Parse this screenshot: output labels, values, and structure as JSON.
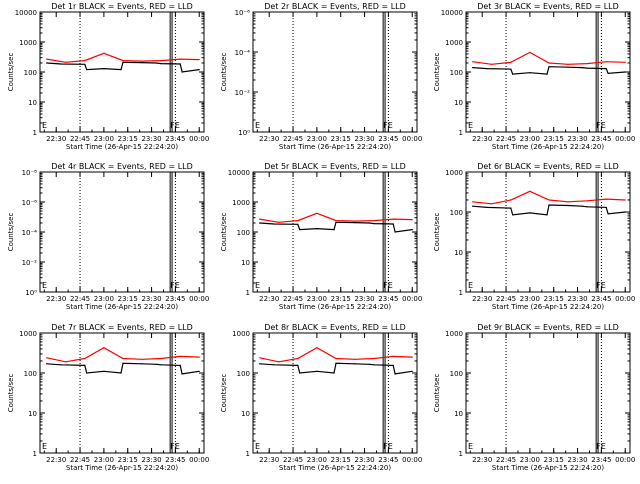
{
  "figure": {
    "background": "#ffffff",
    "events_color": "#000000",
    "lld_color": "#ff0000",
    "x_tick_labels": [
      "22:30",
      "22:45",
      "23:00",
      "23:15",
      "23:30",
      "23:45",
      "00:00"
    ],
    "xlabel": "Start Time (26-Apr-15 22:24:20)",
    "ylabel": "Counts/sec",
    "marker_label_e": "E",
    "marker_label_fe": "FE"
  },
  "chart_data": [
    {
      "type": "line",
      "title": "Det 1r BLACK = Events, RED = LLD",
      "ylog": true,
      "yticks": [
        "1",
        "10",
        "100",
        "1000",
        "10000"
      ],
      "series": [
        {
          "name": "Events",
          "color": "#000000",
          "x": [
            22.4,
            22.55,
            22.8,
            22.82,
            23.0,
            23.18,
            23.2,
            23.4,
            23.55,
            23.6,
            23.8,
            23.82,
            24.0
          ],
          "y": [
            200,
            185,
            180,
            120,
            130,
            120,
            210,
            205,
            200,
            190,
            185,
            100,
            120
          ]
        },
        {
          "name": "LLD",
          "color": "#ff0000",
          "x": [
            22.4,
            22.6,
            22.8,
            23.0,
            23.2,
            23.4,
            23.6,
            23.8,
            24.0
          ],
          "y": [
            270,
            210,
            240,
            420,
            240,
            230,
            240,
            270,
            260
          ]
        }
      ]
    },
    {
      "type": "line",
      "title": "Det 2r BLACK = Events, RED = LLD",
      "ylog": true,
      "yticks": [
        "10⁰",
        "10⁻²",
        "10⁻⁴",
        "10⁻⁶"
      ],
      "series": []
    },
    {
      "type": "line",
      "title": "Det 3r BLACK = Events, RED = LLD",
      "ylog": true,
      "yticks": [
        "1",
        "10",
        "100",
        "1000",
        "10000"
      ],
      "series": [
        {
          "name": "Events",
          "color": "#000000",
          "x": [
            22.4,
            22.55,
            22.8,
            22.82,
            23.0,
            23.18,
            23.2,
            23.4,
            23.55,
            23.6,
            23.8,
            23.82,
            24.0
          ],
          "y": [
            140,
            130,
            125,
            85,
            95,
            85,
            150,
            145,
            140,
            135,
            130,
            90,
            100
          ]
        },
        {
          "name": "LLD",
          "color": "#ff0000",
          "x": [
            22.4,
            22.6,
            22.8,
            23.0,
            23.2,
            23.4,
            23.6,
            23.8,
            24.0
          ],
          "y": [
            220,
            180,
            210,
            450,
            200,
            180,
            190,
            220,
            210
          ]
        }
      ]
    },
    {
      "type": "line",
      "title": "Det 4r BLACK = Events, RED = LLD",
      "ylog": true,
      "yticks": [
        "10⁰",
        "10⁻²",
        "10⁻⁴",
        "10⁻⁶",
        "10⁻⁸"
      ],
      "series": []
    },
    {
      "type": "line",
      "title": "Det 5r BLACK = Events, RED = LLD",
      "ylog": true,
      "yticks": [
        "1",
        "10",
        "100",
        "1000",
        "10000"
      ],
      "series": [
        {
          "name": "Events",
          "color": "#000000",
          "x": [
            22.4,
            22.55,
            22.8,
            22.82,
            23.0,
            23.18,
            23.2,
            23.4,
            23.55,
            23.6,
            23.8,
            23.82,
            24.0
          ],
          "y": [
            200,
            185,
            180,
            120,
            130,
            120,
            210,
            205,
            200,
            190,
            185,
            100,
            120
          ]
        },
        {
          "name": "LLD",
          "color": "#ff0000",
          "x": [
            22.4,
            22.6,
            22.8,
            23.0,
            23.2,
            23.4,
            23.6,
            23.8,
            24.0
          ],
          "y": [
            270,
            210,
            240,
            420,
            240,
            230,
            240,
            270,
            260
          ]
        }
      ]
    },
    {
      "type": "line",
      "title": "Det 6r BLACK = Events, RED = LLD",
      "ylog": true,
      "yticks": [
        "1",
        "10",
        "100",
        "1000"
      ],
      "series": [
        {
          "name": "Events",
          "color": "#000000",
          "x": [
            22.4,
            22.55,
            22.8,
            22.82,
            23.0,
            23.18,
            23.2,
            23.4,
            23.55,
            23.6,
            23.8,
            23.82,
            24.0
          ],
          "y": [
            140,
            130,
            125,
            85,
            95,
            85,
            150,
            145,
            140,
            135,
            130,
            90,
            100
          ]
        },
        {
          "name": "LLD",
          "color": "#ff0000",
          "x": [
            22.4,
            22.6,
            22.8,
            23.0,
            23.2,
            23.4,
            23.6,
            23.8,
            24.0
          ],
          "y": [
            180,
            160,
            200,
            330,
            200,
            180,
            190,
            210,
            200
          ]
        }
      ]
    },
    {
      "type": "line",
      "title": "Det 7r BLACK = Events, RED = LLD",
      "ylog": true,
      "yticks": [
        "1",
        "10",
        "100",
        "1000"
      ],
      "series": [
        {
          "name": "Events",
          "color": "#000000",
          "x": [
            22.4,
            22.55,
            22.8,
            22.82,
            23.0,
            23.18,
            23.2,
            23.4,
            23.55,
            23.6,
            23.8,
            23.82,
            24.0
          ],
          "y": [
            170,
            160,
            155,
            100,
            110,
            100,
            175,
            170,
            165,
            160,
            155,
            95,
            110
          ]
        },
        {
          "name": "LLD",
          "color": "#ff0000",
          "x": [
            22.4,
            22.6,
            22.8,
            23.0,
            23.2,
            23.4,
            23.6,
            23.8,
            24.0
          ],
          "y": [
            240,
            190,
            230,
            430,
            230,
            220,
            230,
            260,
            250
          ]
        }
      ]
    },
    {
      "type": "line",
      "title": "Det 8r BLACK = Events, RED = LLD",
      "ylog": true,
      "yticks": [
        "1",
        "10",
        "100",
        "1000"
      ],
      "series": [
        {
          "name": "Events",
          "color": "#000000",
          "x": [
            22.4,
            22.55,
            22.8,
            22.82,
            23.0,
            23.18,
            23.2,
            23.4,
            23.55,
            23.6,
            23.8,
            23.82,
            24.0
          ],
          "y": [
            170,
            160,
            155,
            100,
            110,
            100,
            175,
            170,
            165,
            160,
            155,
            95,
            110
          ]
        },
        {
          "name": "LLD",
          "color": "#ff0000",
          "x": [
            22.4,
            22.6,
            22.8,
            23.0,
            23.2,
            23.4,
            23.6,
            23.8,
            24.0
          ],
          "y": [
            240,
            190,
            230,
            430,
            230,
            220,
            230,
            260,
            250
          ]
        }
      ]
    },
    {
      "type": "line",
      "title": "Det 9r BLACK = Events, RED = LLD",
      "ylog": true,
      "yticks": [
        "1",
        "10",
        "100",
        "1000"
      ],
      "series": []
    }
  ]
}
